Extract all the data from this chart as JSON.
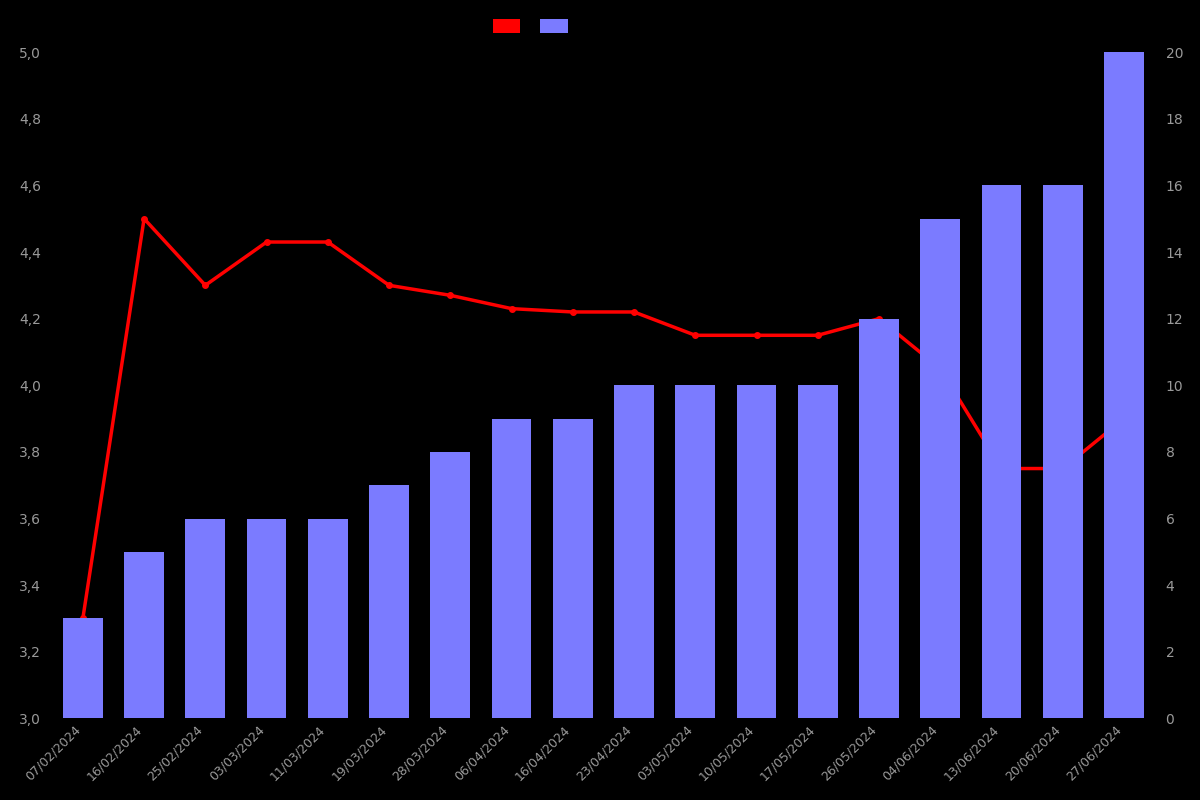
{
  "dates": [
    "07/02/2024",
    "16/02/2024",
    "25/02/2024",
    "03/03/2024",
    "11/03/2024",
    "19/03/2024",
    "28/03/2024",
    "06/04/2024",
    "16/04/2024",
    "23/04/2024",
    "03/05/2024",
    "10/05/2024",
    "17/05/2024",
    "26/05/2024",
    "04/06/2024",
    "13/06/2024",
    "20/06/2024",
    "27/06/2024"
  ],
  "bar_values": [
    3,
    5,
    6,
    6,
    6,
    7,
    8,
    9,
    9,
    10,
    10,
    10,
    10,
    12,
    15,
    16,
    16,
    20
  ],
  "line_values": [
    3.3,
    4.5,
    4.3,
    4.43,
    4.43,
    4.3,
    4.27,
    4.23,
    4.22,
    4.22,
    4.15,
    4.15,
    4.15,
    4.2,
    4.05,
    3.75,
    3.75,
    3.9
  ],
  "bar_color": "#7b7bff",
  "line_color": "#ff0000",
  "background_color": "#000000",
  "text_color": "#999999",
  "ylim_left": [
    3.0,
    5.0
  ],
  "ylim_right": [
    0,
    20
  ],
  "yticks_left": [
    3.0,
    3.2,
    3.4,
    3.6,
    3.8,
    4.0,
    4.2,
    4.4,
    4.6,
    4.8,
    5.0
  ],
  "yticks_right": [
    0,
    2,
    4,
    6,
    8,
    10,
    12,
    14,
    16,
    18,
    20
  ],
  "figsize": [
    12.0,
    8.0
  ],
  "dpi": 100
}
